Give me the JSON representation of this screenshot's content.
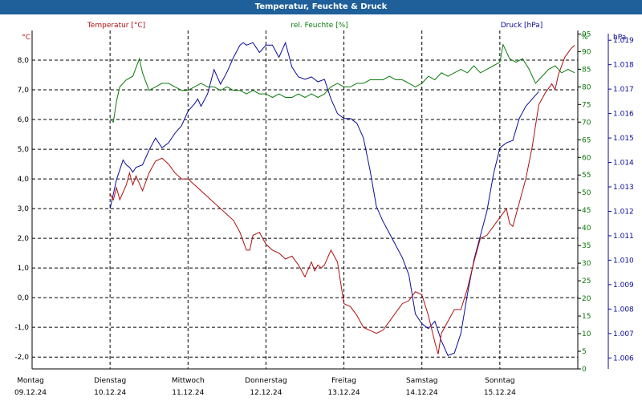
{
  "window": {
    "title": "Temperatur, Feuchte & Druck"
  },
  "colors": {
    "temperature": "#b01010",
    "humidity": "#0a7a0a",
    "pressure": "#0a0a9a",
    "title_bar": "#1f5f9a",
    "grid": "#000000"
  },
  "chart_data": {
    "type": "line",
    "grid": true,
    "x_range": [
      "09.12.24 00:00",
      "16.12.24 00:00"
    ],
    "x_ticks": [
      {
        "day": "Montag",
        "date": "09.12.24"
      },
      {
        "day": "Dienstag",
        "date": "10.12.24"
      },
      {
        "day": "Mittwoch",
        "date": "11.12.24"
      },
      {
        "day": "Donnerstag",
        "date": "12.12.24"
      },
      {
        "day": "Freitag",
        "date": "13.12.24"
      },
      {
        "day": "Samstag",
        "date": "14.12.24"
      },
      {
        "day": "Sonntag",
        "date": "15.12.24"
      }
    ],
    "axes": {
      "left": {
        "label": "°C",
        "range": [
          -2.4,
          9.0
        ],
        "ticks": [
          8.0,
          7.0,
          6.0,
          5.0,
          4.0,
          3.0,
          2.0,
          1.0,
          0.0,
          -1.0,
          -2.0
        ],
        "tick_labels": [
          "8,0",
          "7,0",
          "6,0",
          "5,0",
          "4,0",
          "3,0",
          "2,0",
          "1,0",
          "0,0",
          "-1,0",
          "-2,0"
        ]
      },
      "right_humidity": {
        "label": "%",
        "range": [
          0,
          96
        ],
        "ticks": [
          95,
          90,
          85,
          80,
          75,
          70,
          65,
          60,
          55,
          50,
          45,
          40,
          35,
          30,
          25,
          20,
          15,
          10,
          5,
          0
        ]
      },
      "right_pressure": {
        "label": "hPa",
        "range": [
          1005.55,
          1019.4
        ],
        "ticks": [
          1019,
          1018,
          1017,
          1016,
          1015,
          1014,
          1013,
          1012,
          1011,
          1010,
          1009,
          1008,
          1007,
          1006
        ],
        "tick_labels": [
          "1.019",
          "1.018",
          "1.017",
          "1.016",
          "1.015",
          "1.014",
          "1.013",
          "1.012",
          "1.011",
          "1.010",
          "1.009",
          "1.008",
          "1.007",
          "1.006"
        ]
      }
    },
    "series": [
      {
        "name": "Temperatur [°C]",
        "axis": "left",
        "points": [
          [
            "10.12.24 00:00",
            3.5
          ],
          [
            "10.12.24 01:00",
            3.3
          ],
          [
            "10.12.24 02:00",
            3.7
          ],
          [
            "10.12.24 03:00",
            3.3
          ],
          [
            "10.12.24 05:00",
            3.8
          ],
          [
            "10.12.24 06:00",
            4.2
          ],
          [
            "10.12.24 07:00",
            3.8
          ],
          [
            "10.12.24 08:00",
            4.1
          ],
          [
            "10.12.24 10:00",
            3.6
          ],
          [
            "10.12.24 12:00",
            4.2
          ],
          [
            "10.12.24 14:00",
            4.6
          ],
          [
            "10.12.24 16:00",
            4.7
          ],
          [
            "10.12.24 18:00",
            4.5
          ],
          [
            "10.12.24 20:00",
            4.2
          ],
          [
            "10.12.24 22:00",
            4.0
          ],
          [
            "11.12.24 00:00",
            4.0
          ],
          [
            "11.12.24 02:00",
            3.8
          ],
          [
            "11.12.24 04:00",
            3.6
          ],
          [
            "11.12.24 06:00",
            3.4
          ],
          [
            "11.12.24 08:00",
            3.2
          ],
          [
            "11.12.24 10:00",
            3.0
          ],
          [
            "11.12.24 12:00",
            2.8
          ],
          [
            "11.12.24 14:00",
            2.6
          ],
          [
            "11.12.24 16:00",
            2.2
          ],
          [
            "11.12.24 18:00",
            1.6
          ],
          [
            "11.12.24 19:00",
            1.6
          ],
          [
            "11.12.24 20:00",
            2.1
          ],
          [
            "11.12.24 22:00",
            2.2
          ],
          [
            "12.12.24 00:00",
            1.8
          ],
          [
            "12.12.24 02:00",
            1.6
          ],
          [
            "12.12.24 04:00",
            1.5
          ],
          [
            "12.12.24 06:00",
            1.3
          ],
          [
            "12.12.24 08:00",
            1.4
          ],
          [
            "12.12.24 10:00",
            1.1
          ],
          [
            "12.12.24 12:00",
            0.7
          ],
          [
            "12.12.24 14:00",
            1.2
          ],
          [
            "12.12.24 15:00",
            0.9
          ],
          [
            "12.12.24 16:00",
            1.1
          ],
          [
            "12.12.24 17:00",
            1.0
          ],
          [
            "12.12.24 18:00",
            1.1
          ],
          [
            "12.12.24 20:00",
            1.6
          ],
          [
            "12.12.24 22:00",
            1.2
          ],
          [
            "13.12.24 00:00",
            -0.2
          ],
          [
            "13.12.24 02:00",
            -0.3
          ],
          [
            "13.12.24 04:00",
            -0.6
          ],
          [
            "13.12.24 06:00",
            -1.0
          ],
          [
            "13.12.24 08:00",
            -1.1
          ],
          [
            "13.12.24 10:00",
            -1.2
          ],
          [
            "13.12.24 12:00",
            -1.1
          ],
          [
            "13.12.24 14:00",
            -0.8
          ],
          [
            "13.12.24 16:00",
            -0.5
          ],
          [
            "13.12.24 18:00",
            -0.2
          ],
          [
            "13.12.24 20:00",
            -0.1
          ],
          [
            "13.12.24 22:00",
            0.2
          ],
          [
            "14.12.24 00:00",
            0.1
          ],
          [
            "14.12.24 02:00",
            -0.6
          ],
          [
            "14.12.24 04:00",
            -1.5
          ],
          [
            "14.12.24 05:00",
            -1.9
          ],
          [
            "14.12.24 06:00",
            -1.2
          ],
          [
            "14.12.24 08:00",
            -0.8
          ],
          [
            "14.12.24 10:00",
            -0.4
          ],
          [
            "14.12.24 12:00",
            -0.4
          ],
          [
            "14.12.24 14:00",
            0.3
          ],
          [
            "14.12.24 16:00",
            1.2
          ],
          [
            "14.12.24 18:00",
            2.0
          ],
          [
            "14.12.24 20:00",
            2.1
          ],
          [
            "14.12.24 22:00",
            2.4
          ],
          [
            "15.12.24 00:00",
            2.7
          ],
          [
            "15.12.24 02:00",
            3.0
          ],
          [
            "15.12.24 03:00",
            2.5
          ],
          [
            "15.12.24 04:00",
            2.4
          ],
          [
            "15.12.24 06:00",
            3.2
          ],
          [
            "15.12.24 08:00",
            4.0
          ],
          [
            "15.12.24 10:00",
            5.1
          ],
          [
            "15.12.24 12:00",
            6.5
          ],
          [
            "15.12.24 14:00",
            6.9
          ],
          [
            "15.12.24 16:00",
            7.2
          ],
          [
            "15.12.24 17:00",
            7.0
          ],
          [
            "15.12.24 18:00",
            7.5
          ],
          [
            "15.12.24 20:00",
            8.1
          ],
          [
            "15.12.24 22:00",
            8.4
          ],
          [
            "15.12.24 23:00",
            8.5
          ]
        ]
      },
      {
        "name": "rel. Feuchte [%]",
        "axis": "right_humidity",
        "points": [
          [
            "10.12.24 00:00",
            71
          ],
          [
            "10.12.24 01:00",
            70
          ],
          [
            "10.12.24 02:00",
            76
          ],
          [
            "10.12.24 03:00",
            80
          ],
          [
            "10.12.24 05:00",
            82
          ],
          [
            "10.12.24 07:00",
            83
          ],
          [
            "10.12.24 09:00",
            88
          ],
          [
            "10.12.24 10:00",
            84
          ],
          [
            "10.12.24 12:00",
            79
          ],
          [
            "10.12.24 14:00",
            80
          ],
          [
            "10.12.24 16:00",
            81
          ],
          [
            "10.12.24 18:00",
            81
          ],
          [
            "10.12.24 20:00",
            80
          ],
          [
            "10.12.24 22:00",
            79
          ],
          [
            "11.12.24 00:00",
            79
          ],
          [
            "11.12.24 02:00",
            80
          ],
          [
            "11.12.24 04:00",
            81
          ],
          [
            "11.12.24 06:00",
            80
          ],
          [
            "11.12.24 08:00",
            80
          ],
          [
            "11.12.24 10:00",
            79
          ],
          [
            "11.12.24 12:00",
            80
          ],
          [
            "11.12.24 14:00",
            79
          ],
          [
            "11.12.24 16:00",
            79
          ],
          [
            "11.12.24 18:00",
            78
          ],
          [
            "11.12.24 20:00",
            79
          ],
          [
            "11.12.24 22:00",
            78
          ],
          [
            "12.12.24 00:00",
            78
          ],
          [
            "12.12.24 02:00",
            77
          ],
          [
            "12.12.24 04:00",
            78
          ],
          [
            "12.12.24 06:00",
            77
          ],
          [
            "12.12.24 08:00",
            77
          ],
          [
            "12.12.24 10:00",
            78
          ],
          [
            "12.12.24 12:00",
            77
          ],
          [
            "12.12.24 14:00",
            78
          ],
          [
            "12.12.24 16:00",
            77
          ],
          [
            "12.12.24 18:00",
            78
          ],
          [
            "12.12.24 20:00",
            80
          ],
          [
            "12.12.24 22:00",
            81
          ],
          [
            "13.12.24 00:00",
            80
          ],
          [
            "13.12.24 02:00",
            80
          ],
          [
            "13.12.24 04:00",
            81
          ],
          [
            "13.12.24 06:00",
            81
          ],
          [
            "13.12.24 08:00",
            82
          ],
          [
            "13.12.24 10:00",
            82
          ],
          [
            "13.12.24 12:00",
            82
          ],
          [
            "13.12.24 14:00",
            83
          ],
          [
            "13.12.24 16:00",
            82
          ],
          [
            "13.12.24 18:00",
            82
          ],
          [
            "13.12.24 20:00",
            81
          ],
          [
            "13.12.24 22:00",
            80
          ],
          [
            "14.12.24 00:00",
            81
          ],
          [
            "14.12.24 02:00",
            83
          ],
          [
            "14.12.24 04:00",
            82
          ],
          [
            "14.12.24 06:00",
            84
          ],
          [
            "14.12.24 08:00",
            83
          ],
          [
            "14.12.24 10:00",
            84
          ],
          [
            "14.12.24 12:00",
            85
          ],
          [
            "14.12.24 14:00",
            84
          ],
          [
            "14.12.24 16:00",
            86
          ],
          [
            "14.12.24 18:00",
            84
          ],
          [
            "14.12.24 20:00",
            85
          ],
          [
            "14.12.24 22:00",
            86
          ],
          [
            "15.12.24 00:00",
            87
          ],
          [
            "15.12.24 01:00",
            92
          ],
          [
            "15.12.24 03:00",
            88
          ],
          [
            "15.12.24 05:00",
            87
          ],
          [
            "15.12.24 07:00",
            88
          ],
          [
            "15.12.24 09:00",
            85
          ],
          [
            "15.12.24 11:00",
            81
          ],
          [
            "15.12.24 13:00",
            83
          ],
          [
            "15.12.24 15:00",
            85
          ],
          [
            "15.12.24 17:00",
            86
          ],
          [
            "15.12.24 19:00",
            84
          ],
          [
            "15.12.24 21:00",
            85
          ],
          [
            "15.12.24 23:00",
            84
          ]
        ]
      },
      {
        "name": "Druck [hPa]",
        "axis": "right_pressure",
        "points": [
          [
            "10.12.24 00:00",
            1012.1
          ],
          [
            "10.12.24 01:00",
            1012.7
          ],
          [
            "10.12.24 02:00",
            1013.3
          ],
          [
            "10.12.24 03:00",
            1013.7
          ],
          [
            "10.12.24 04:00",
            1014.1
          ],
          [
            "10.12.24 05:00",
            1013.9
          ],
          [
            "10.12.24 06:00",
            1013.8
          ],
          [
            "10.12.24 07:00",
            1013.6
          ],
          [
            "10.12.24 08:00",
            1013.8
          ],
          [
            "10.12.24 10:00",
            1013.9
          ],
          [
            "10.12.24 12:00",
            1014.5
          ],
          [
            "10.12.24 14:00",
            1015.0
          ],
          [
            "10.12.24 16:00",
            1014.6
          ],
          [
            "10.12.24 18:00",
            1014.8
          ],
          [
            "10.12.24 20:00",
            1015.2
          ],
          [
            "10.12.24 22:00",
            1015.5
          ],
          [
            "11.12.24 00:00",
            1016.1
          ],
          [
            "11.12.24 02:00",
            1016.4
          ],
          [
            "11.12.24 03:00",
            1016.6
          ],
          [
            "11.12.24 04:00",
            1016.3
          ],
          [
            "11.12.24 06:00",
            1016.8
          ],
          [
            "11.12.24 08:00",
            1017.8
          ],
          [
            "11.12.24 10:00",
            1017.2
          ],
          [
            "11.12.24 12:00",
            1017.7
          ],
          [
            "11.12.24 14:00",
            1018.3
          ],
          [
            "11.12.24 16:00",
            1018.8
          ],
          [
            "11.12.24 17:00",
            1018.9
          ],
          [
            "11.12.24 18:00",
            1018.8
          ],
          [
            "11.12.24 20:00",
            1018.9
          ],
          [
            "11.12.24 22:00",
            1018.5
          ],
          [
            "12.12.24 00:00",
            1018.8
          ],
          [
            "12.12.24 02:00",
            1018.8
          ],
          [
            "12.12.24 04:00",
            1018.3
          ],
          [
            "12.12.24 06:00",
            1018.9
          ],
          [
            "12.12.24 08:00",
            1017.9
          ],
          [
            "12.12.24 10:00",
            1017.5
          ],
          [
            "12.12.24 12:00",
            1017.4
          ],
          [
            "12.12.24 14:00",
            1017.5
          ],
          [
            "12.12.24 16:00",
            1017.3
          ],
          [
            "12.12.24 18:00",
            1017.4
          ],
          [
            "12.12.24 20:00",
            1016.6
          ],
          [
            "12.12.24 22:00",
            1016.0
          ],
          [
            "13.12.24 00:00",
            1015.8
          ],
          [
            "13.12.24 02:00",
            1015.8
          ],
          [
            "13.12.24 04:00",
            1015.6
          ],
          [
            "13.12.24 06:00",
            1015.0
          ],
          [
            "13.12.24 08:00",
            1013.7
          ],
          [
            "13.12.24 10:00",
            1012.2
          ],
          [
            "13.12.24 12:00",
            1011.6
          ],
          [
            "13.12.24 14:00",
            1011.1
          ],
          [
            "13.12.24 16:00",
            1010.6
          ],
          [
            "13.12.24 18:00",
            1010.1
          ],
          [
            "13.12.24 20:00",
            1009.4
          ],
          [
            "13.12.24 22:00",
            1007.8
          ],
          [
            "14.12.24 00:00",
            1007.4
          ],
          [
            "14.12.24 02:00",
            1007.2
          ],
          [
            "14.12.24 04:00",
            1007.5
          ],
          [
            "14.12.24 06:00",
            1006.7
          ],
          [
            "14.12.24 08:00",
            1006.1
          ],
          [
            "14.12.24 10:00",
            1006.2
          ],
          [
            "14.12.24 12:00",
            1007.0
          ],
          [
            "14.12.24 14:00",
            1008.6
          ],
          [
            "14.12.24 16:00",
            1010.0
          ],
          [
            "14.12.24 18:00",
            1011.0
          ],
          [
            "14.12.24 20:00",
            1012.0
          ],
          [
            "14.12.24 22:00",
            1013.5
          ],
          [
            "15.12.24 00:00",
            1014.6
          ],
          [
            "15.12.24 02:00",
            1014.8
          ],
          [
            "15.12.24 04:00",
            1014.9
          ],
          [
            "15.12.24 06:00",
            1015.8
          ],
          [
            "15.12.24 08:00",
            1016.3
          ],
          [
            "15.12.24 10:00",
            1016.6
          ],
          [
            "15.12.24 12:00",
            1016.9
          ]
        ]
      }
    ]
  }
}
